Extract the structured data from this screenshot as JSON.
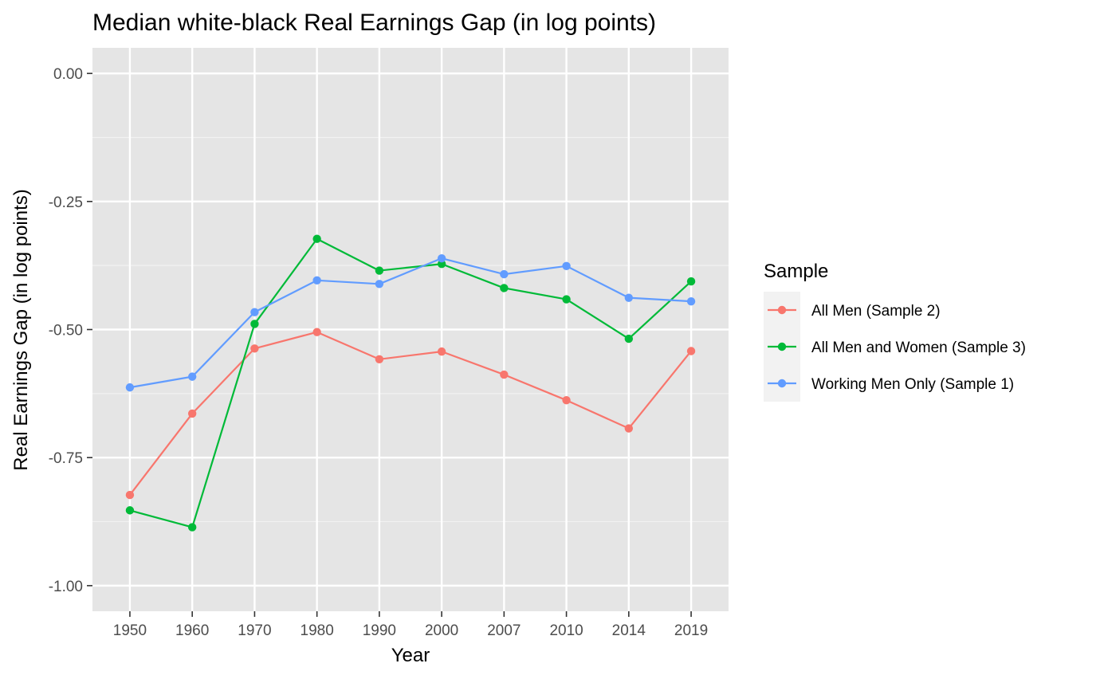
{
  "chart_data": {
    "type": "line",
    "title": "Median white-black Real Earnings Gap (in log points)",
    "xlabel": "Year",
    "ylabel": "Real Earnings Gap (in log points)",
    "categories": [
      "1950",
      "1960",
      "1970",
      "1980",
      "1990",
      "2000",
      "2007",
      "2010",
      "2014",
      "2019"
    ],
    "ylim": [
      -1.05,
      0.05
    ],
    "yticks": [
      0.0,
      -0.25,
      -0.5,
      -0.75,
      -1.0
    ],
    "ytick_labels": [
      "0.00",
      "-0.25",
      "-0.50",
      "-0.75",
      "-1.00"
    ],
    "grid": true,
    "legend": {
      "title": "Sample",
      "position": "right"
    },
    "series": [
      {
        "name": "All Men (Sample 2)",
        "color": "#F8766D",
        "values": [
          -0.823,
          -0.664,
          -0.537,
          -0.505,
          -0.558,
          -0.543,
          -0.588,
          -0.638,
          -0.693,
          -0.542
        ]
      },
      {
        "name": "All Men and Women (Sample 3)",
        "color": "#00BA38",
        "values": [
          -0.853,
          -0.886,
          -0.489,
          -0.323,
          -0.385,
          -0.372,
          -0.419,
          -0.441,
          -0.518,
          -0.406
        ]
      },
      {
        "name": "Working Men Only (Sample 1)",
        "color": "#619CFF",
        "values": [
          -0.613,
          -0.592,
          -0.466,
          -0.404,
          -0.411,
          -0.361,
          -0.392,
          -0.376,
          -0.438,
          -0.445
        ]
      }
    ]
  }
}
